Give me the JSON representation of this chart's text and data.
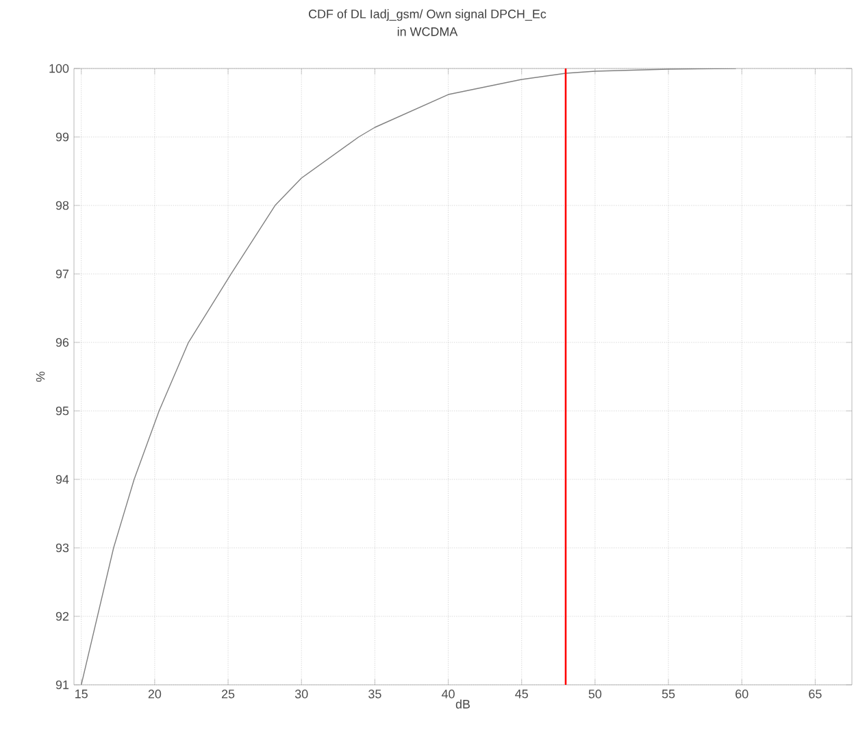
{
  "chart_data": {
    "type": "line",
    "title": "CDF of DL Iadj_gsm/ Own signal DPCH_Ec",
    "subtitle": "in WCDMA",
    "xlabel": "dB",
    "ylabel": "%",
    "series": [
      {
        "color": "#808080",
        "x": [
          15,
          16.1,
          17.2,
          18.6,
          20.3,
          22.3,
          25.2,
          28.2,
          30,
          33.9,
          35,
          40,
          45,
          48,
          50,
          55,
          59.6
        ],
        "values": [
          91,
          92,
          93,
          94,
          95,
          96,
          97,
          98,
          98.4,
          99,
          99.14,
          99.62,
          99.84,
          99.93,
          99.96,
          99.99,
          100
        ]
      }
    ],
    "xlim": [
      14.5,
      67.5
    ],
    "ylim": [
      91,
      100
    ],
    "xticks": [
      15,
      20,
      25,
      30,
      35,
      40,
      45,
      50,
      55,
      60,
      65
    ],
    "yticks": [
      91,
      92,
      93,
      94,
      95,
      96,
      97,
      98,
      99,
      100
    ],
    "ref_lines": [
      {
        "axis": "x",
        "value": 48,
        "color": "#ff0000",
        "line_style": "solid"
      }
    ],
    "grid": true,
    "marker": "none",
    "line_style": "solid"
  }
}
